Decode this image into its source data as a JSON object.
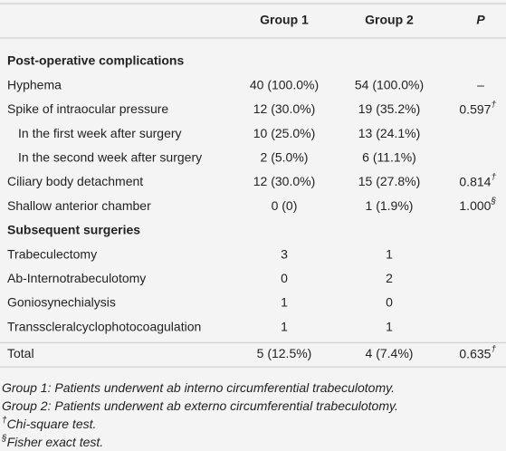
{
  "table": {
    "header": [
      "Group 1",
      "Group 2",
      "P"
    ],
    "rows": [
      {
        "section": "Post-operative complications"
      },
      {
        "label": "Hyphema",
        "group1": "40 (100.0%)",
        "group2": "54 (100.0%)",
        "p": "–"
      },
      {
        "label": "Spike of intraocular pressure",
        "group1": "12 (30.0%)",
        "group2": "19 (35.2%)",
        "p": "0.597",
        "p_mark": "†"
      },
      {
        "label": "In the first week after surgery",
        "group1": "10 (25.0%)",
        "group2": "13 (24.1%)",
        "indent": true
      },
      {
        "label": "In the second week after surgery",
        "group1": "2 (5.0%)",
        "group2": "6 (11.1%)",
        "indent": true
      },
      {
        "label": "Ciliary body detachment",
        "group1": "12 (30.0%)",
        "group2": "15 (27.8%)",
        "p": "0.814",
        "p_mark": "†"
      },
      {
        "label": "Shallow anterior chamber",
        "group1": "0 (0)",
        "group2": "1 (1.9%)",
        "p": "1.000",
        "p_mark": "§"
      },
      {
        "section": "Subsequent surgeries"
      },
      {
        "label": "Trabeculectomy",
        "group1": "3",
        "group2": "1"
      },
      {
        "label": "Ab-Internotrabeculotomy",
        "group1": "0",
        "group2": "2"
      },
      {
        "label": "Goniosynechialysis",
        "group1": "1",
        "group2": "0"
      },
      {
        "label": "Transscleralcyclophotocoagulation",
        "group1": "1",
        "group2": "1"
      },
      {
        "label": "Total",
        "group1": "5 (12.5%)",
        "group2": "4 (7.4%)",
        "p": "0.635",
        "p_mark": "†"
      }
    ],
    "footnotes": [
      {
        "text": "Group 1: Patients underwent ab interno circumferential trabeculotomy."
      },
      {
        "text": "Group 2: Patients underwent ab externo circumferential trabeculotomy."
      },
      {
        "mark": "†",
        "text": "Chi-square test."
      },
      {
        "mark": "§",
        "text": "Fisher exact test."
      }
    ]
  }
}
